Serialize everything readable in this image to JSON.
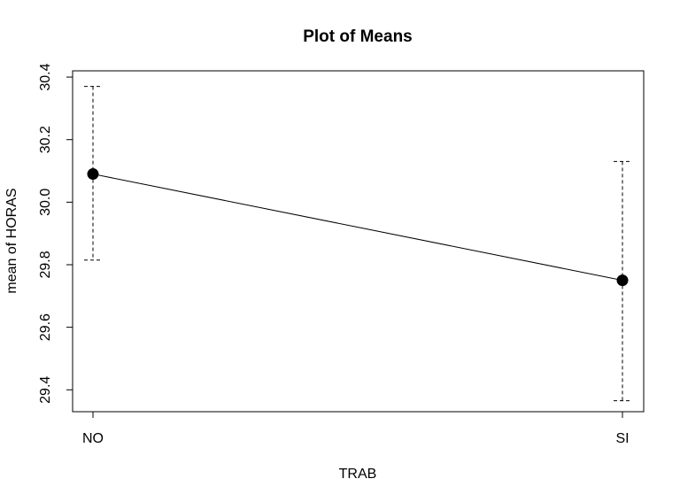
{
  "chart_data": {
    "type": "line",
    "title": "Plot of Means",
    "xlabel": "TRAB",
    "ylabel": "mean of HORAS",
    "categories": [
      "NO",
      "SI"
    ],
    "series": [
      {
        "values": [
          30.09,
          29.75
        ],
        "ci_upper": [
          30.37,
          30.13
        ],
        "ci_lower": [
          29.815,
          29.365
        ]
      }
    ],
    "yticks": [
      "29.4",
      "29.6",
      "29.8",
      "30.0",
      "30.2",
      "30.4"
    ],
    "ylim": [
      29.33,
      30.42
    ],
    "grid": false,
    "legend": "none"
  }
}
